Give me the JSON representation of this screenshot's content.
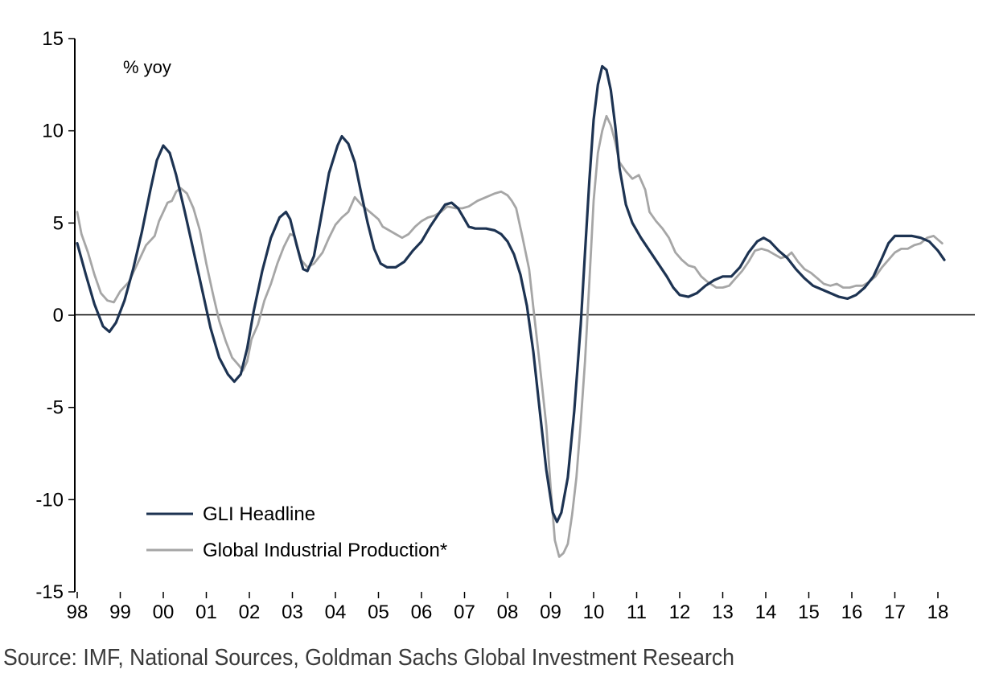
{
  "chart_data": {
    "type": "line",
    "unit_label": "% yoy",
    "source": "Source: IMF, National Sources, Goldman Sachs Global Investment Research",
    "ylim": [
      -15,
      15
    ],
    "y_ticks": [
      15,
      10,
      5,
      0,
      -5,
      -10,
      -15
    ],
    "y_tick_labels": [
      "15",
      "10",
      "5",
      "0",
      "-5",
      "-10",
      "-15"
    ],
    "x_ticks": [
      1998,
      1999,
      2000,
      2001,
      2002,
      2003,
      2004,
      2005,
      2006,
      2007,
      2008,
      2009,
      2010,
      2011,
      2012,
      2013,
      2014,
      2015,
      2016,
      2017,
      2018
    ],
    "x_tick_labels": [
      "98",
      "99",
      "00",
      "01",
      "02",
      "03",
      "04",
      "05",
      "06",
      "07",
      "08",
      "09",
      "10",
      "11",
      "12",
      "13",
      "14",
      "15",
      "16",
      "17",
      "18"
    ],
    "xlim": [
      1998.0,
      2018.4
    ],
    "legend_position": "bottom-left",
    "series": [
      {
        "name": "GLI Headline",
        "color": "#1d3352",
        "points": [
          [
            1998.0,
            3.9
          ],
          [
            1998.2,
            2.2
          ],
          [
            1998.4,
            0.6
          ],
          [
            1998.6,
            -0.6
          ],
          [
            1998.75,
            -0.9
          ],
          [
            1998.9,
            -0.4
          ],
          [
            1999.1,
            0.8
          ],
          [
            1999.3,
            2.5
          ],
          [
            1999.5,
            4.5
          ],
          [
            1999.7,
            6.8
          ],
          [
            1999.85,
            8.4
          ],
          [
            2000.0,
            9.2
          ],
          [
            2000.15,
            8.8
          ],
          [
            2000.3,
            7.6
          ],
          [
            2000.5,
            5.6
          ],
          [
            2000.7,
            3.5
          ],
          [
            2000.9,
            1.4
          ],
          [
            2001.1,
            -0.7
          ],
          [
            2001.3,
            -2.3
          ],
          [
            2001.5,
            -3.2
          ],
          [
            2001.65,
            -3.6
          ],
          [
            2001.8,
            -3.2
          ],
          [
            2001.95,
            -1.8
          ],
          [
            2002.1,
            0.2
          ],
          [
            2002.3,
            2.4
          ],
          [
            2002.5,
            4.2
          ],
          [
            2002.7,
            5.3
          ],
          [
            2002.85,
            5.6
          ],
          [
            2002.95,
            5.2
          ],
          [
            2003.1,
            3.8
          ],
          [
            2003.25,
            2.5
          ],
          [
            2003.35,
            2.4
          ],
          [
            2003.5,
            3.2
          ],
          [
            2003.65,
            5.1
          ],
          [
            2003.85,
            7.7
          ],
          [
            2004.05,
            9.2
          ],
          [
            2004.15,
            9.7
          ],
          [
            2004.3,
            9.3
          ],
          [
            2004.45,
            8.3
          ],
          [
            2004.6,
            6.6
          ],
          [
            2004.75,
            5.0
          ],
          [
            2004.9,
            3.6
          ],
          [
            2005.05,
            2.8
          ],
          [
            2005.2,
            2.6
          ],
          [
            2005.4,
            2.6
          ],
          [
            2005.6,
            2.9
          ],
          [
            2005.8,
            3.5
          ],
          [
            2006.0,
            4.0
          ],
          [
            2006.2,
            4.8
          ],
          [
            2006.4,
            5.5
          ],
          [
            2006.55,
            6.0
          ],
          [
            2006.7,
            6.1
          ],
          [
            2006.85,
            5.8
          ],
          [
            2007.0,
            5.2
          ],
          [
            2007.1,
            4.8
          ],
          [
            2007.25,
            4.7
          ],
          [
            2007.5,
            4.7
          ],
          [
            2007.7,
            4.6
          ],
          [
            2007.85,
            4.4
          ],
          [
            2008.0,
            4.0
          ],
          [
            2008.15,
            3.3
          ],
          [
            2008.3,
            2.2
          ],
          [
            2008.45,
            0.5
          ],
          [
            2008.6,
            -2.0
          ],
          [
            2008.75,
            -5.2
          ],
          [
            2008.9,
            -8.4
          ],
          [
            2009.05,
            -10.7
          ],
          [
            2009.15,
            -11.2
          ],
          [
            2009.25,
            -10.7
          ],
          [
            2009.4,
            -8.8
          ],
          [
            2009.55,
            -5.2
          ],
          [
            2009.7,
            -0.5
          ],
          [
            2009.8,
            3.4
          ],
          [
            2009.9,
            7.3
          ],
          [
            2010.0,
            10.6
          ],
          [
            2010.1,
            12.5
          ],
          [
            2010.2,
            13.5
          ],
          [
            2010.3,
            13.3
          ],
          [
            2010.4,
            12.2
          ],
          [
            2010.5,
            10.3
          ],
          [
            2010.6,
            8.0
          ],
          [
            2010.75,
            6.0
          ],
          [
            2010.9,
            5.0
          ],
          [
            2011.1,
            4.2
          ],
          [
            2011.3,
            3.5
          ],
          [
            2011.5,
            2.8
          ],
          [
            2011.7,
            2.1
          ],
          [
            2011.85,
            1.5
          ],
          [
            2012.0,
            1.1
          ],
          [
            2012.2,
            1.0
          ],
          [
            2012.4,
            1.2
          ],
          [
            2012.6,
            1.6
          ],
          [
            2012.8,
            1.9
          ],
          [
            2013.0,
            2.1
          ],
          [
            2013.2,
            2.1
          ],
          [
            2013.4,
            2.6
          ],
          [
            2013.6,
            3.4
          ],
          [
            2013.8,
            4.0
          ],
          [
            2013.95,
            4.2
          ],
          [
            2014.1,
            4.0
          ],
          [
            2014.3,
            3.5
          ],
          [
            2014.5,
            3.1
          ],
          [
            2014.7,
            2.5
          ],
          [
            2014.9,
            2.0
          ],
          [
            2015.1,
            1.6
          ],
          [
            2015.3,
            1.4
          ],
          [
            2015.5,
            1.2
          ],
          [
            2015.7,
            1.0
          ],
          [
            2015.9,
            0.9
          ],
          [
            2016.1,
            1.1
          ],
          [
            2016.3,
            1.5
          ],
          [
            2016.5,
            2.1
          ],
          [
            2016.7,
            3.1
          ],
          [
            2016.85,
            3.9
          ],
          [
            2017.0,
            4.3
          ],
          [
            2017.2,
            4.3
          ],
          [
            2017.4,
            4.3
          ],
          [
            2017.6,
            4.2
          ],
          [
            2017.8,
            4.0
          ],
          [
            2018.0,
            3.5
          ],
          [
            2018.15,
            3.0
          ]
        ]
      },
      {
        "name": "Global Industrial Production*",
        "color": "#a6a6a6",
        "points": [
          [
            1998.0,
            5.6
          ],
          [
            1998.1,
            4.4
          ],
          [
            1998.25,
            3.4
          ],
          [
            1998.4,
            2.2
          ],
          [
            1998.55,
            1.2
          ],
          [
            1998.7,
            0.8
          ],
          [
            1998.85,
            0.7
          ],
          [
            1999.0,
            1.3
          ],
          [
            1999.2,
            1.8
          ],
          [
            1999.4,
            2.8
          ],
          [
            1999.6,
            3.8
          ],
          [
            1999.8,
            4.3
          ],
          [
            1999.9,
            5.1
          ],
          [
            2000.0,
            5.6
          ],
          [
            2000.1,
            6.1
          ],
          [
            2000.2,
            6.2
          ],
          [
            2000.3,
            6.7
          ],
          [
            2000.4,
            6.9
          ],
          [
            2000.55,
            6.6
          ],
          [
            2000.7,
            5.8
          ],
          [
            2000.85,
            4.6
          ],
          [
            2001.0,
            2.8
          ],
          [
            2001.15,
            1.2
          ],
          [
            2001.3,
            -0.3
          ],
          [
            2001.45,
            -1.4
          ],
          [
            2001.6,
            -2.3
          ],
          [
            2001.75,
            -2.7
          ],
          [
            2001.85,
            -3.0
          ],
          [
            2001.95,
            -2.5
          ],
          [
            2002.05,
            -1.3
          ],
          [
            2002.2,
            -0.5
          ],
          [
            2002.35,
            0.8
          ],
          [
            2002.5,
            1.7
          ],
          [
            2002.65,
            2.8
          ],
          [
            2002.8,
            3.7
          ],
          [
            2002.95,
            4.4
          ],
          [
            2003.05,
            4.3
          ],
          [
            2003.2,
            3.0
          ],
          [
            2003.35,
            2.6
          ],
          [
            2003.5,
            2.8
          ],
          [
            2003.7,
            3.4
          ],
          [
            2003.85,
            4.2
          ],
          [
            2004.0,
            4.9
          ],
          [
            2004.15,
            5.3
          ],
          [
            2004.3,
            5.6
          ],
          [
            2004.45,
            6.4
          ],
          [
            2004.6,
            6.0
          ],
          [
            2004.8,
            5.6
          ],
          [
            2005.0,
            5.2
          ],
          [
            2005.1,
            4.8
          ],
          [
            2005.25,
            4.6
          ],
          [
            2005.4,
            4.4
          ],
          [
            2005.55,
            4.2
          ],
          [
            2005.7,
            4.4
          ],
          [
            2005.85,
            4.8
          ],
          [
            2006.0,
            5.1
          ],
          [
            2006.15,
            5.3
          ],
          [
            2006.3,
            5.4
          ],
          [
            2006.45,
            5.6
          ],
          [
            2006.6,
            5.9
          ],
          [
            2006.8,
            5.8
          ],
          [
            2006.95,
            5.8
          ],
          [
            2007.1,
            5.9
          ],
          [
            2007.3,
            6.2
          ],
          [
            2007.5,
            6.4
          ],
          [
            2007.7,
            6.6
          ],
          [
            2007.85,
            6.7
          ],
          [
            2008.0,
            6.5
          ],
          [
            2008.1,
            6.2
          ],
          [
            2008.2,
            5.8
          ],
          [
            2008.35,
            4.2
          ],
          [
            2008.5,
            2.5
          ],
          [
            2008.6,
            0.4
          ],
          [
            2008.75,
            -2.7
          ],
          [
            2008.9,
            -6.0
          ],
          [
            2009.0,
            -9.3
          ],
          [
            2009.1,
            -12.2
          ],
          [
            2009.2,
            -13.1
          ],
          [
            2009.3,
            -12.9
          ],
          [
            2009.4,
            -12.4
          ],
          [
            2009.5,
            -10.8
          ],
          [
            2009.6,
            -8.8
          ],
          [
            2009.7,
            -5.8
          ],
          [
            2009.8,
            -2.5
          ],
          [
            2009.9,
            1.8
          ],
          [
            2010.0,
            6.2
          ],
          [
            2010.1,
            8.8
          ],
          [
            2010.2,
            10.0
          ],
          [
            2010.3,
            10.8
          ],
          [
            2010.4,
            10.3
          ],
          [
            2010.5,
            9.4
          ],
          [
            2010.6,
            8.3
          ],
          [
            2010.75,
            7.8
          ],
          [
            2010.9,
            7.4
          ],
          [
            2011.05,
            7.6
          ],
          [
            2011.2,
            6.8
          ],
          [
            2011.3,
            5.6
          ],
          [
            2011.45,
            5.1
          ],
          [
            2011.6,
            4.7
          ],
          [
            2011.75,
            4.2
          ],
          [
            2011.9,
            3.4
          ],
          [
            2012.05,
            3.0
          ],
          [
            2012.2,
            2.7
          ],
          [
            2012.35,
            2.6
          ],
          [
            2012.5,
            2.1
          ],
          [
            2012.65,
            1.8
          ],
          [
            2012.85,
            1.5
          ],
          [
            2013.0,
            1.5
          ],
          [
            2013.15,
            1.6
          ],
          [
            2013.3,
            2.0
          ],
          [
            2013.45,
            2.4
          ],
          [
            2013.6,
            2.9
          ],
          [
            2013.75,
            3.5
          ],
          [
            2013.9,
            3.6
          ],
          [
            2014.05,
            3.5
          ],
          [
            2014.2,
            3.3
          ],
          [
            2014.35,
            3.1
          ],
          [
            2014.5,
            3.2
          ],
          [
            2014.6,
            3.4
          ],
          [
            2014.75,
            2.9
          ],
          [
            2014.9,
            2.5
          ],
          [
            2015.05,
            2.3
          ],
          [
            2015.2,
            2.0
          ],
          [
            2015.35,
            1.7
          ],
          [
            2015.5,
            1.6
          ],
          [
            2015.65,
            1.7
          ],
          [
            2015.8,
            1.5
          ],
          [
            2015.95,
            1.5
          ],
          [
            2016.1,
            1.6
          ],
          [
            2016.25,
            1.6
          ],
          [
            2016.4,
            1.8
          ],
          [
            2016.55,
            2.1
          ],
          [
            2016.7,
            2.6
          ],
          [
            2016.85,
            3.0
          ],
          [
            2017.0,
            3.4
          ],
          [
            2017.15,
            3.6
          ],
          [
            2017.3,
            3.6
          ],
          [
            2017.45,
            3.8
          ],
          [
            2017.6,
            3.9
          ],
          [
            2017.75,
            4.2
          ],
          [
            2017.9,
            4.3
          ],
          [
            2018.0,
            4.1
          ],
          [
            2018.1,
            3.9
          ]
        ]
      }
    ]
  }
}
